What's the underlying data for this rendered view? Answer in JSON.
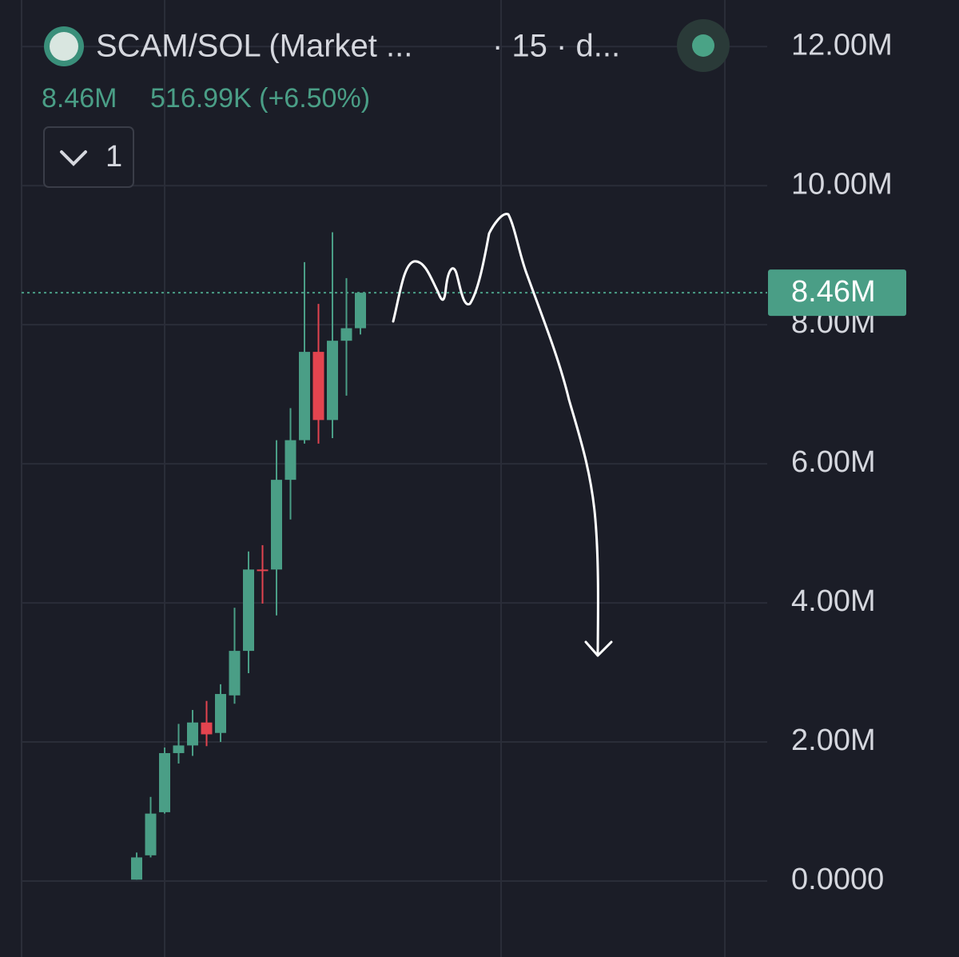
{
  "chart_data": {
    "type": "candlestick",
    "title": "SCAM/SOL (Market ...",
    "interval": "· 15 · d...",
    "legend_price": "8.46M",
    "legend_change": "516.99K (+6.50%)",
    "indicator_count": "1",
    "open": [
      0.02,
      0.37,
      0.99,
      1.84,
      1.95,
      2.28,
      2.13,
      2.67,
      3.31,
      4.48,
      4.48,
      5.77,
      6.34,
      7.61,
      6.63,
      7.77,
      7.95
    ],
    "high": [
      0.41,
      1.21,
      1.92,
      2.26,
      2.46,
      2.59,
      2.83,
      3.93,
      4.74,
      4.83,
      6.34,
      6.8,
      8.9,
      8.3,
      9.33,
      8.67,
      8.46
    ],
    "low": [
      0.02,
      0.34,
      0.97,
      1.69,
      1.8,
      1.94,
      2.0,
      2.55,
      2.99,
      3.99,
      3.82,
      5.2,
      6.29,
      6.29,
      6.37,
      6.98,
      7.86
    ],
    "close": [
      0.34,
      0.97,
      1.84,
      1.95,
      2.28,
      2.11,
      2.69,
      3.31,
      4.48,
      4.47,
      5.77,
      6.34,
      7.61,
      6.63,
      7.77,
      7.95,
      8.46
    ],
    "up_color": "#4a9e86",
    "down_color": "#e3444f",
    "ylim": [
      0,
      12.67
    ],
    "yticks": [
      {
        "value": 0,
        "label": "0.0000"
      },
      {
        "value": 2,
        "label": "2.00M"
      },
      {
        "value": 4,
        "label": "4.00M"
      },
      {
        "value": 6,
        "label": "6.00M"
      },
      {
        "value": 8,
        "label": "8.00M"
      },
      {
        "value": 10,
        "label": "10.00M"
      },
      {
        "value": 12,
        "label": "12.00M"
      }
    ],
    "last_price": {
      "value": 8.46,
      "label": "8.46M"
    },
    "grid": true
  }
}
